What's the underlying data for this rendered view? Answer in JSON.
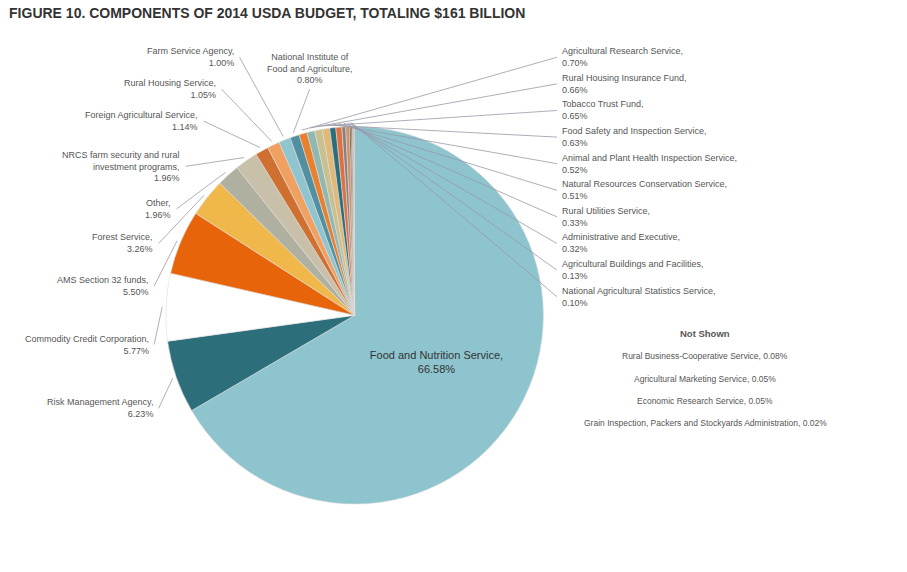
{
  "chart_data": {
    "type": "pie",
    "title": "FIGURE 10. COMPONENTS OF 2014 USDA BUDGET, TOTALING $161 BILLION",
    "categories": [
      "Food and Nutrition Service,\n66.58%",
      "Risk Management Agency,\n6.23%",
      "Commodity Credit Corporation,\n5.77%",
      "AMS Section 32 funds,\n5.50%",
      "Forest Service,\n3.26%",
      "Other,\n1.96%",
      "NRCS farm security and rural\ninvestment programs,\n1.96%",
      "Foreign Agricultural Service,\n1.14%",
      "Rural Housing Service,\n1.05%",
      "Farm Service Agency,\n1.00%",
      "National Institute of\nFood and Agriculture,\n0.80%",
      "Agricultural Research Service,\n0.70%",
      "Rural Housing Insurance Fund,\n0.66%",
      "Tobacco Trust Fund,\n0.65%",
      "Food Safety and Inspection Service,\n0.63%",
      "Animal and Plant Health Inspection Service,\n0.52%",
      "Natural Resources Conservation Service,\n0.51%",
      "Rural Utilities Service,\n0.33%",
      "Administrative and Executive,\n0.32%",
      "Agricultural Buildings and Facilities,\n0.13%",
      "National Agricultural Statistics Service,\n0.10%",
      null,
      null,
      null,
      null
    ],
    "values": [
      66.58,
      6.23,
      5.77,
      5.5,
      3.26,
      1.96,
      1.96,
      1.14,
      1.05,
      1.0,
      0.8,
      0.7,
      0.66,
      0.65,
      0.63,
      0.52,
      0.51,
      0.33,
      0.32,
      0.13,
      0.1,
      0.08,
      0.05,
      0.05,
      0.02
    ],
    "colors": [
      "#8DC4CE",
      "#2C6E7A",
      "#FFFFFF",
      "#E8640A",
      "#F0B84A",
      "#B0B0A0",
      "#C8C0A8",
      "#D07030",
      "#F0A060",
      "#90C4CE",
      "#5090A0",
      "#E88030",
      "#90B8B0",
      "#C8C090",
      "#E0B878",
      "#2C6E7A",
      "#E07040",
      "#888080",
      "#D09060",
      "#5C3820",
      "#403028",
      "#A07050",
      "#886040",
      "#705030",
      "#584020"
    ],
    "data_labels": true,
    "annotations": [
      "Not Shown",
      "Rural Business-Cooperative Service, 0.08%",
      "Agricultural Marketing Service, 0.05%",
      "Economic Research Service, 0.05%",
      "Grain Inspection, Packers and Stockyards Administration, 0.02%"
    ]
  }
}
